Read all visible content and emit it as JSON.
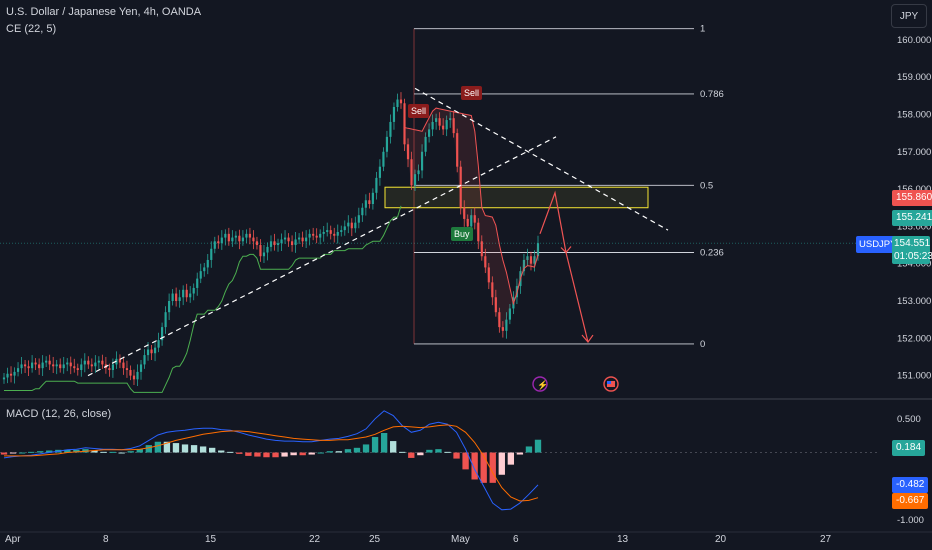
{
  "header": {
    "title": "U.S. Dollar / Japanese Yen, 4h, OANDA",
    "indicator": "CE (22, 5)",
    "macd_label": "MACD (12, 26, close)",
    "currency_button": "JPY"
  },
  "colors": {
    "background": "#131722",
    "up": "#26a69a",
    "down": "#ef5350",
    "fib": "#d1d4dc",
    "zone": "#f7e733",
    "trend": "#ffffff",
    "arrow": "#f05454",
    "macd_line": "#2962ff",
    "signal_line": "#ff6d00",
    "ce_long": "#4caf50",
    "ce_short": "#f05454"
  },
  "price_tags": {
    "sell_level": "155.860",
    "buy_level": "155.241",
    "symbol": "USDJPY",
    "last_price": "154.551",
    "countdown": "01:05:23"
  },
  "macd_tags": {
    "hist": "0.184",
    "macd": "-0.482",
    "signal": "-0.667"
  },
  "signals": {
    "sell": "Sell",
    "buy": "Buy"
  },
  "icons": [
    "lightning-icon",
    "us-flag-icon"
  ],
  "chart_data": [
    {
      "type": "candlestick",
      "title": "U.S. Dollar / Japanese Yen, 4h, OANDA",
      "x_ticks": [
        "Apr",
        "8",
        "15",
        "22",
        "25",
        "May",
        "6",
        "13",
        "20",
        "27"
      ],
      "y_ticks": [
        "160.000",
        "159.000",
        "158.000",
        "157.000",
        "156.000",
        "155.000",
        "154.000",
        "153.000",
        "152.000",
        "151.000"
      ],
      "ylim": [
        150.4,
        160.8
      ],
      "closes": [
        150.95,
        151.05,
        151.0,
        151.1,
        151.2,
        151.3,
        151.25,
        151.2,
        151.35,
        151.3,
        151.2,
        151.35,
        151.4,
        151.3,
        151.25,
        151.3,
        151.2,
        151.3,
        151.35,
        151.25,
        151.2,
        151.15,
        151.3,
        151.4,
        151.3,
        151.25,
        151.35,
        151.4,
        151.3,
        151.2,
        151.15,
        151.3,
        151.45,
        151.35,
        151.2,
        151.15,
        151.0,
        150.9,
        151.1,
        151.3,
        151.55,
        151.7,
        151.6,
        151.75,
        151.95,
        152.3,
        152.7,
        153.0,
        153.2,
        153.0,
        153.1,
        153.3,
        153.1,
        153.2,
        153.35,
        153.6,
        153.8,
        153.9,
        154.1,
        154.4,
        154.6,
        154.55,
        154.7,
        154.8,
        154.6,
        154.7,
        154.75,
        154.6,
        154.7,
        154.8,
        154.7,
        154.6,
        154.5,
        154.2,
        154.3,
        154.45,
        154.6,
        154.5,
        154.55,
        154.65,
        154.7,
        154.6,
        154.5,
        154.65,
        154.7,
        154.6,
        154.7,
        154.8,
        154.75,
        154.7,
        154.8,
        154.85,
        154.9,
        154.8,
        154.75,
        154.85,
        154.9,
        155.0,
        155.1,
        154.95,
        155.1,
        155.3,
        155.5,
        155.7,
        155.6,
        155.9,
        156.3,
        156.6,
        157.0,
        157.4,
        157.8,
        158.2,
        158.4,
        158.3,
        157.2,
        156.8,
        156.1,
        156.4,
        156.5,
        157.0,
        157.4,
        157.6,
        157.8,
        157.9,
        157.7,
        157.6,
        157.85,
        157.9,
        157.5,
        156.6,
        155.5,
        155.2,
        155.0,
        155.3,
        155.1,
        154.6,
        154.2,
        153.9,
        153.5,
        153.1,
        152.7,
        152.3,
        152.2,
        152.5,
        152.8,
        153.1,
        153.4,
        153.8,
        154.1,
        154.2,
        154.0,
        154.2,
        154.55
      ]
    },
    {
      "type": "bar",
      "title": "MACD (12, 26, close)",
      "y_ticks": [
        "0.500",
        "0.000",
        "-0.500",
        "-1.000"
      ],
      "ylim": [
        -1.15,
        0.75
      ],
      "series": [
        {
          "name": "MACD",
          "values": [
            -0.08,
            -0.06,
            -0.05,
            -0.04,
            -0.02,
            0.0,
            0.02,
            0.04,
            0.05,
            0.07,
            0.06,
            0.05,
            0.05,
            0.04,
            0.06,
            0.1,
            0.18,
            0.26,
            0.3,
            0.32,
            0.33,
            0.35,
            0.36,
            0.36,
            0.34,
            0.33,
            0.3,
            0.26,
            0.23,
            0.2,
            0.18,
            0.17,
            0.17,
            0.16,
            0.16,
            0.18,
            0.2,
            0.21,
            0.24,
            0.28,
            0.35,
            0.5,
            0.62,
            0.55,
            0.4,
            0.3,
            0.33,
            0.42,
            0.45,
            0.42,
            0.3,
            0.05,
            -0.25,
            -0.5,
            -0.75,
            -0.85,
            -0.84,
            -0.75,
            -0.62,
            -0.48
          ]
        },
        {
          "name": "Signal",
          "values": [
            -0.05,
            -0.05,
            -0.05,
            -0.05,
            -0.04,
            -0.03,
            -0.02,
            0.0,
            0.01,
            0.02,
            0.03,
            0.04,
            0.04,
            0.04,
            0.04,
            0.05,
            0.07,
            0.1,
            0.14,
            0.18,
            0.21,
            0.24,
            0.27,
            0.29,
            0.31,
            0.32,
            0.32,
            0.31,
            0.29,
            0.27,
            0.25,
            0.23,
            0.21,
            0.2,
            0.19,
            0.18,
            0.18,
            0.19,
            0.19,
            0.21,
            0.23,
            0.27,
            0.33,
            0.38,
            0.39,
            0.38,
            0.37,
            0.38,
            0.4,
            0.41,
            0.39,
            0.3,
            0.15,
            -0.05,
            -0.3,
            -0.52,
            -0.66,
            -0.72,
            -0.71,
            -0.67
          ]
        }
      ]
    }
  ]
}
